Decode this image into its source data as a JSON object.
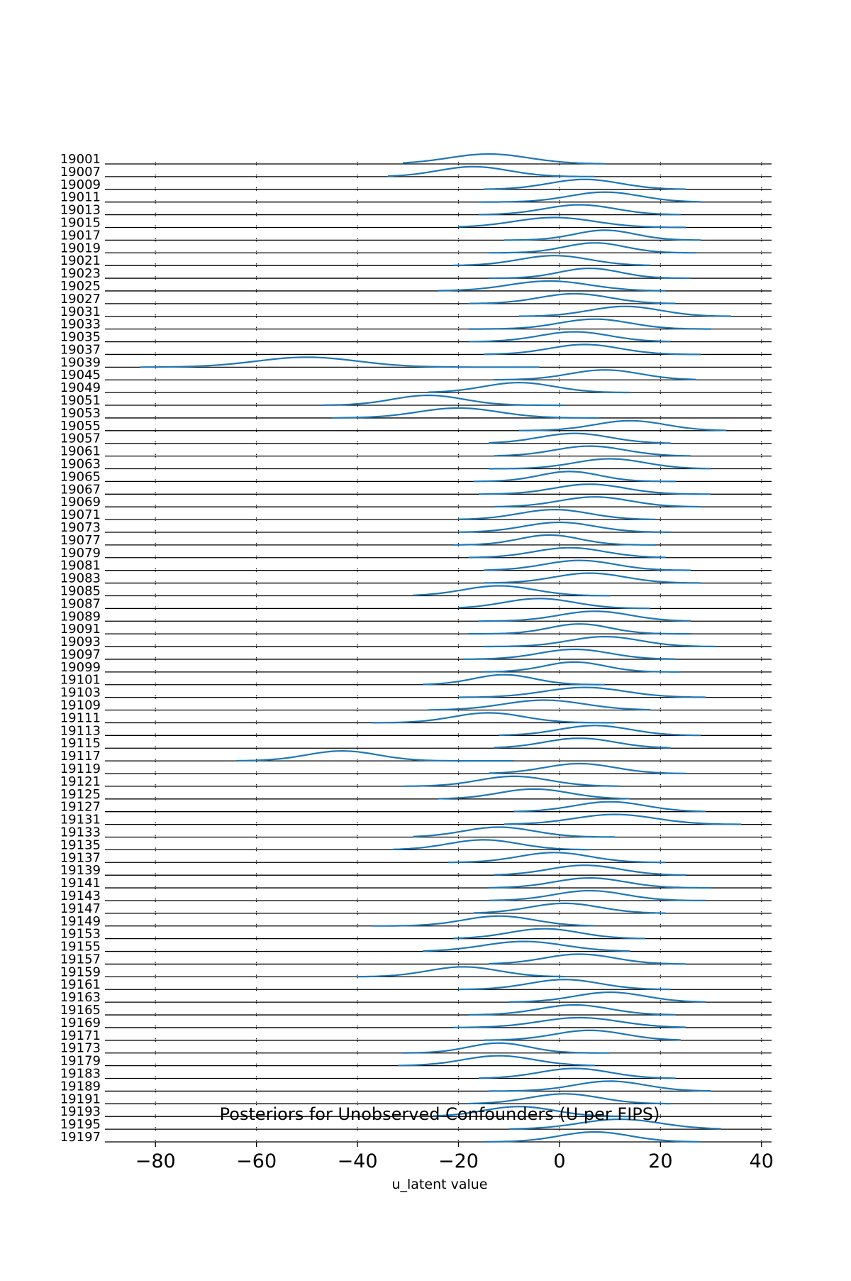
{
  "chart_data": {
    "type": "ridgeline",
    "title": "Posteriors for Unobserved Confounders (U per FIPS)",
    "xlabel": "u_latent value",
    "ylabel": "",
    "xlim": [
      -90,
      42
    ],
    "xticks": [
      -80,
      -60,
      -40,
      -20,
      0,
      20,
      40
    ],
    "grid": true,
    "legend": "none",
    "line_color": "#1f77b4",
    "series": [
      {
        "name": "19001",
        "center": -14,
        "spread": 8,
        "min": -31,
        "max": 9
      },
      {
        "name": "19007",
        "center": -17,
        "spread": 7,
        "min": -34,
        "max": 7
      },
      {
        "name": "19009",
        "center": 5,
        "spread": 7,
        "min": -15,
        "max": 25
      },
      {
        "name": "19011",
        "center": 9,
        "spread": 7,
        "min": -16,
        "max": 28
      },
      {
        "name": "19013",
        "center": 4,
        "spread": 7,
        "min": -16,
        "max": 24
      },
      {
        "name": "19015",
        "center": -1,
        "spread": 8,
        "min": -20,
        "max": 25
      },
      {
        "name": "19017",
        "center": 9,
        "spread": 6,
        "min": -11,
        "max": 28
      },
      {
        "name": "19019",
        "center": 7,
        "spread": 6,
        "min": -14,
        "max": 27
      },
      {
        "name": "19021",
        "center": -1,
        "spread": 7,
        "min": -21,
        "max": 18
      },
      {
        "name": "19023",
        "center": 6,
        "spread": 6,
        "min": -14,
        "max": 26
      },
      {
        "name": "19025",
        "center": -2,
        "spread": 8,
        "min": -24,
        "max": 21
      },
      {
        "name": "19027",
        "center": 3,
        "spread": 7,
        "min": -18,
        "max": 23
      },
      {
        "name": "19031",
        "center": 13,
        "spread": 7,
        "min": -8,
        "max": 34
      },
      {
        "name": "19033",
        "center": 7,
        "spread": 7,
        "min": -18,
        "max": 30
      },
      {
        "name": "19035",
        "center": 3,
        "spread": 7,
        "min": -18,
        "max": 22
      },
      {
        "name": "19037",
        "center": 5,
        "spread": 7,
        "min": -15,
        "max": 28
      },
      {
        "name": "19039",
        "center": -50,
        "spread": 10,
        "min": -83,
        "max": -4
      },
      {
        "name": "19045",
        "center": 9,
        "spread": 7,
        "min": -13,
        "max": 27
      },
      {
        "name": "19049",
        "center": -8,
        "spread": 7,
        "min": -26,
        "max": 14
      },
      {
        "name": "19051",
        "center": -26,
        "spread": 7,
        "min": -47,
        "max": 1
      },
      {
        "name": "19053",
        "center": -20,
        "spread": 8,
        "min": -45,
        "max": 8
      },
      {
        "name": "19055",
        "center": 14,
        "spread": 7,
        "min": -8,
        "max": 33
      },
      {
        "name": "19057",
        "center": 3,
        "spread": 7,
        "min": -14,
        "max": 22
      },
      {
        "name": "19061",
        "center": 6,
        "spread": 7,
        "min": -13,
        "max": 26
      },
      {
        "name": "19063",
        "center": 10,
        "spread": 7,
        "min": -14,
        "max": 30
      },
      {
        "name": "19065",
        "center": 2,
        "spread": 6,
        "min": -17,
        "max": 23
      },
      {
        "name": "19067",
        "center": 6,
        "spread": 7,
        "min": -16,
        "max": 30
      },
      {
        "name": "19069",
        "center": 7,
        "spread": 7,
        "min": -13,
        "max": 28
      },
      {
        "name": "19071",
        "center": -1,
        "spread": 7,
        "min": -20,
        "max": 19
      },
      {
        "name": "19073",
        "center": 0,
        "spread": 7,
        "min": -20,
        "max": 22
      },
      {
        "name": "19077",
        "center": -2,
        "spread": 6,
        "min": -21,
        "max": 19
      },
      {
        "name": "19079",
        "center": 2,
        "spread": 7,
        "min": -18,
        "max": 21
      },
      {
        "name": "19081",
        "center": 4,
        "spread": 7,
        "min": -15,
        "max": 26
      },
      {
        "name": "19083",
        "center": 6,
        "spread": 7,
        "min": -15,
        "max": 28
      },
      {
        "name": "19085",
        "center": -12,
        "spread": 7,
        "min": -29,
        "max": 10
      },
      {
        "name": "19087",
        "center": -4,
        "spread": 7,
        "min": -20,
        "max": 18
      },
      {
        "name": "19089",
        "center": 7,
        "spread": 7,
        "min": -16,
        "max": 26
      },
      {
        "name": "19091",
        "center": 4,
        "spread": 6,
        "min": -18,
        "max": 26
      },
      {
        "name": "19093",
        "center": 9,
        "spread": 7,
        "min": -15,
        "max": 31
      },
      {
        "name": "19097",
        "center": 3,
        "spread": 7,
        "min": -19,
        "max": 23
      },
      {
        "name": "19099",
        "center": 3,
        "spread": 6,
        "min": -15,
        "max": 24
      },
      {
        "name": "19101",
        "center": -11,
        "spread": 6,
        "min": -27,
        "max": 9
      },
      {
        "name": "19103",
        "center": 5,
        "spread": 8,
        "min": -20,
        "max": 29
      },
      {
        "name": "19109",
        "center": -3,
        "spread": 8,
        "min": -26,
        "max": 18
      },
      {
        "name": "19111",
        "center": -14,
        "spread": 7,
        "min": -37,
        "max": 11
      },
      {
        "name": "19113",
        "center": 7,
        "spread": 7,
        "min": -12,
        "max": 28
      },
      {
        "name": "19115",
        "center": 4,
        "spread": 7,
        "min": -13,
        "max": 22
      },
      {
        "name": "19117",
        "center": -43,
        "spread": 7,
        "min": -64,
        "max": -9
      },
      {
        "name": "19119",
        "center": 4,
        "spread": 7,
        "min": -14,
        "max": 25
      },
      {
        "name": "19121",
        "center": -9,
        "spread": 7,
        "min": -31,
        "max": 12
      },
      {
        "name": "19125",
        "center": -5,
        "spread": 7,
        "min": -24,
        "max": 14
      },
      {
        "name": "19127",
        "center": 10,
        "spread": 7,
        "min": -9,
        "max": 29
      },
      {
        "name": "19131",
        "center": 11,
        "spread": 8,
        "min": -11,
        "max": 36
      },
      {
        "name": "19133",
        "center": -12,
        "spread": 7,
        "min": -29,
        "max": 11
      },
      {
        "name": "19135",
        "center": -15,
        "spread": 7,
        "min": -33,
        "max": 6
      },
      {
        "name": "19137",
        "center": -1,
        "spread": 7,
        "min": -22,
        "max": 21
      },
      {
        "name": "19139",
        "center": 5,
        "spread": 7,
        "min": -13,
        "max": 25
      },
      {
        "name": "19141",
        "center": 6,
        "spread": 7,
        "min": -14,
        "max": 30
      },
      {
        "name": "19143",
        "center": 6,
        "spread": 7,
        "min": -14,
        "max": 29
      },
      {
        "name": "19147",
        "center": 1,
        "spread": 7,
        "min": -17,
        "max": 21
      },
      {
        "name": "19149",
        "center": -12,
        "spread": 7,
        "min": -37,
        "max": 7
      },
      {
        "name": "19153",
        "center": -3,
        "spread": 7,
        "min": -21,
        "max": 17
      },
      {
        "name": "19155",
        "center": -7,
        "spread": 8,
        "min": -27,
        "max": 14
      },
      {
        "name": "19157",
        "center": 4,
        "spread": 7,
        "min": -14,
        "max": 25
      },
      {
        "name": "19159",
        "center": -19,
        "spread": 7,
        "min": -40,
        "max": 1
      },
      {
        "name": "19161",
        "center": 1,
        "spread": 7,
        "min": -20,
        "max": 22
      },
      {
        "name": "19163",
        "center": 10,
        "spread": 7,
        "min": -10,
        "max": 29
      },
      {
        "name": "19165",
        "center": 3,
        "spread": 7,
        "min": -18,
        "max": 23
      },
      {
        "name": "19169",
        "center": 4,
        "spread": 8,
        "min": -21,
        "max": 25
      },
      {
        "name": "19171",
        "center": 6,
        "spread": 7,
        "min": -15,
        "max": 24
      },
      {
        "name": "19173",
        "center": -12,
        "spread": 6,
        "min": -31,
        "max": 10
      },
      {
        "name": "19179",
        "center": -12,
        "spread": 7,
        "min": -32,
        "max": 7
      },
      {
        "name": "19183",
        "center": 3,
        "spread": 7,
        "min": -16,
        "max": 23
      },
      {
        "name": "19189",
        "center": 10,
        "spread": 7,
        "min": -14,
        "max": 30
      },
      {
        "name": "19191",
        "center": 1,
        "spread": 7,
        "min": -18,
        "max": 22
      },
      {
        "name": "19193",
        "center": -8,
        "spread": 7,
        "min": -25,
        "max": 14
      },
      {
        "name": "19195",
        "center": 12,
        "spread": 8,
        "min": -10,
        "max": 32
      },
      {
        "name": "19197",
        "center": 7,
        "spread": 7,
        "min": -15,
        "max": 28
      }
    ]
  }
}
